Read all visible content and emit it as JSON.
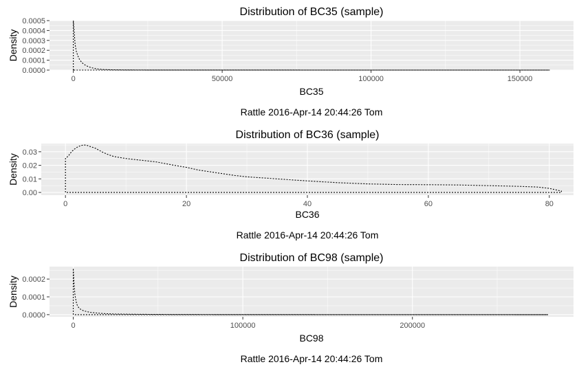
{
  "chart_data": [
    {
      "type": "line",
      "title": "Distribution of BC35 (sample)",
      "xlabel": "BC35",
      "ylabel": "Density",
      "caption": "Rattle 2016-Apr-14 20:44:26 Tom",
      "xlim": [
        -8000,
        168000
      ],
      "ylim": [
        0,
        0.0005
      ],
      "x_ticks": [
        0,
        50000,
        100000,
        150000
      ],
      "x_tick_labels": [
        "0",
        "50000",
        "100000",
        "150000"
      ],
      "y_ticks": [
        0,
        0.0001,
        0.0002,
        0.0003,
        0.0004,
        0.0005
      ],
      "y_tick_labels": [
        "0.0000",
        "0.0001",
        "0.0002",
        "0.0003",
        "0.0004",
        "0.0005"
      ],
      "grid": true,
      "series": [
        {
          "x": [
            0,
            0,
            300,
            600,
            1000,
            1500,
            2000,
            2500,
            3000,
            4000,
            5000,
            6000,
            7000,
            8000,
            10000,
            13000,
            16000,
            20000,
            30000,
            50000,
            80000,
            120000,
            160000,
            160000,
            0
          ],
          "y": [
            0,
            0.0005,
            0.00038,
            0.00026,
            0.00019,
            0.000145,
            0.000112,
            9e-05,
            7.2e-05,
            5e-05,
            3.5e-05,
            2.5e-05,
            1.8e-05,
            1.2e-05,
            6e-06,
            3e-06,
            1.8e-06,
            1e-06,
            5e-07,
            2e-07,
            1e-07,
            5e-08,
            3e-08,
            0,
            0
          ]
        }
      ]
    },
    {
      "type": "line",
      "title": "Distribution of BC36 (sample)",
      "xlabel": "BC36",
      "ylabel": "Density",
      "caption": "Rattle 2016-Apr-14 20:44:26 Tom",
      "xlim": [
        -4,
        84
      ],
      "ylim": [
        -0.002,
        0.036
      ],
      "x_ticks": [
        0,
        20,
        40,
        60,
        80
      ],
      "x_tick_labels": [
        "0",
        "20",
        "40",
        "60",
        "80"
      ],
      "y_ticks": [
        0,
        0.01,
        0.02,
        0.03
      ],
      "y_tick_labels": [
        "0.00",
        "0.01",
        "0.02",
        "0.03"
      ],
      "grid": true,
      "series": [
        {
          "x": [
            0,
            0,
            0.5,
            1,
            1.5,
            2,
            2.5,
            3,
            3.5,
            4,
            5,
            6,
            7,
            8,
            10,
            12,
            15,
            18,
            20,
            22,
            25,
            28,
            30,
            35,
            40,
            45,
            50,
            55,
            60,
            65,
            70,
            75,
            78,
            80,
            81,
            82,
            82,
            0
          ],
          "y": [
            0,
            0.025,
            0.027,
            0.03,
            0.032,
            0.0335,
            0.0345,
            0.035,
            0.0348,
            0.034,
            0.0325,
            0.03,
            0.028,
            0.0265,
            0.025,
            0.024,
            0.0225,
            0.02,
            0.0185,
            0.0165,
            0.0145,
            0.0125,
            0.0115,
            0.01,
            0.0085,
            0.0072,
            0.0063,
            0.0058,
            0.0057,
            0.0055,
            0.005,
            0.0045,
            0.004,
            0.003,
            0.002,
            0.001,
            0,
            0
          ]
        }
      ]
    },
    {
      "type": "line",
      "title": "Distribution of BC98 (sample)",
      "xlabel": "BC98",
      "ylabel": "Density",
      "caption": "Rattle 2016-Apr-14 20:44:26 Tom",
      "xlim": [
        -14000,
        295000
      ],
      "ylim": [
        -1.2e-05,
        0.00027
      ],
      "x_ticks": [
        0,
        100000,
        200000
      ],
      "x_tick_labels": [
        "0",
        "100000",
        "200000"
      ],
      "y_ticks": [
        0,
        0.0001,
        0.0002
      ],
      "y_tick_labels": [
        "0.0000",
        "0.0001",
        "0.0002"
      ],
      "grid": true,
      "series": [
        {
          "x": [
            0,
            0,
            500,
            1000,
            2000,
            3000,
            4000,
            6000,
            8000,
            10000,
            14000,
            18000,
            25000,
            35000,
            45000,
            60000,
            100000,
            150000,
            200000,
            280000,
            280000,
            0
          ],
          "y": [
            0,
            0.00026,
            0.00017,
            0.00011,
            6e-05,
            4.2e-05,
            3.2e-05,
            2.2e-05,
            1.7e-05,
            1.3e-05,
            9e-06,
            6e-06,
            3.5e-06,
            2.2e-06,
            1.5e-06,
            8e-07,
            3e-07,
            1e-07,
            5e-08,
            2e-08,
            0,
            0
          ]
        }
      ]
    }
  ]
}
